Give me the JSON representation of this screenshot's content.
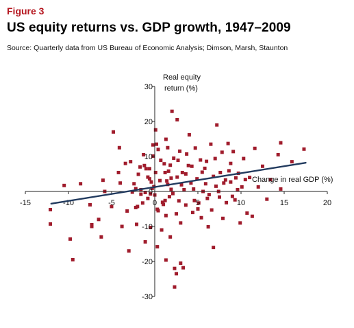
{
  "figure_label": "Figure 3",
  "title": "US equity returns vs. GDP growth, 1947–2009",
  "source": "Source: Quarterly data from US Bureau of Economic Analysis; Dimson, Marsh, Staunton",
  "colors": {
    "points": "#a01c2c",
    "trend": "#213a5e",
    "accent": "#b5161f"
  },
  "chart_data": {
    "type": "scatter",
    "title": "US equity returns vs. GDP growth, 1947–2009",
    "xlabel": "Change in real GDP (%)",
    "ylabel_line1": "Real equity",
    "ylabel_line2": "return (%)",
    "xlim": [
      -15,
      20
    ],
    "ylim": [
      -30,
      30
    ],
    "x_ticks": [
      -15,
      -10,
      -5,
      0,
      5,
      10,
      15,
      20
    ],
    "y_ticks": [
      -30,
      -20,
      -10,
      0,
      10,
      20,
      30
    ],
    "x_tick_labels": [
      "-15",
      "-10",
      "-5",
      "0",
      "5",
      "10",
      "15",
      "20"
    ],
    "y_tick_labels": [
      "-30",
      "-20",
      "-10",
      "0",
      "10",
      "20",
      "30"
    ],
    "trendline": {
      "x": [
        -12,
        17.5
      ],
      "y": [
        -3.5,
        8.2
      ]
    },
    "points": [
      [
        -12.1,
        -5.2
      ],
      [
        -12.1,
        -9.3
      ],
      [
        -10.5,
        1.7
      ],
      [
        -9.8,
        -13.6
      ],
      [
        -9.5,
        -19.5
      ],
      [
        -8.6,
        2.2
      ],
      [
        -7.5,
        -3.8
      ],
      [
        -7.3,
        -9.5
      ],
      [
        -7.3,
        -10.0
      ],
      [
        -6.5,
        -8.0
      ],
      [
        -6.2,
        -13.0
      ],
      [
        -6.0,
        3.2
      ],
      [
        -5.8,
        0.0
      ],
      [
        -5.0,
        -4.3
      ],
      [
        -4.8,
        17.0
      ],
      [
        -4.2,
        5.4
      ],
      [
        -4.0,
        2.4
      ],
      [
        -3.8,
        -10.0
      ],
      [
        -3.4,
        8.0
      ],
      [
        -3.0,
        -17.0
      ],
      [
        -2.8,
        8.5
      ],
      [
        -2.6,
        -0.2
      ],
      [
        -2.4,
        2.2
      ],
      [
        -2.2,
        0.8
      ],
      [
        -2.2,
        -4.6
      ],
      [
        -2.1,
        -9.4
      ],
      [
        -2.0,
        -4.3
      ],
      [
        -1.9,
        4.9
      ],
      [
        -1.7,
        7.0
      ],
      [
        -1.6,
        -0.8
      ],
      [
        -1.6,
        0.5
      ],
      [
        -1.4,
        -3.3
      ],
      [
        -1.2,
        7.4
      ],
      [
        -1.1,
        -0.3
      ],
      [
        -1.1,
        -14.4
      ],
      [
        -1.0,
        6.5
      ],
      [
        -0.8,
        4.1
      ],
      [
        -0.6,
        6.5
      ],
      [
        -0.6,
        3.6
      ],
      [
        -0.5,
        -0.7
      ],
      [
        -0.5,
        -10.3
      ],
      [
        -0.4,
        2.7
      ],
      [
        -0.3,
        0.9
      ],
      [
        -0.2,
        13.3
      ],
      [
        -0.2,
        10.1
      ],
      [
        -0.1,
        1.4
      ],
      [
        0.0,
        -1.0
      ],
      [
        0.1,
        17.6
      ],
      [
        0.1,
        5.4
      ],
      [
        0.2,
        13.5
      ],
      [
        0.3,
        -5.1
      ],
      [
        0.3,
        -15.8
      ],
      [
        0.4,
        -5.5
      ],
      [
        0.6,
        3.1
      ],
      [
        0.7,
        8.9
      ],
      [
        0.9,
        -3.1
      ],
      [
        1.0,
        -3.7
      ],
      [
        1.1,
        7.9
      ],
      [
        1.2,
        5.4
      ],
      [
        1.2,
        -2.6
      ],
      [
        1.3,
        14.9
      ],
      [
        1.3,
        -6.9
      ],
      [
        1.4,
        3.0
      ],
      [
        1.5,
        12.5
      ],
      [
        1.5,
        2.0
      ],
      [
        1.6,
        5.8
      ],
      [
        1.7,
        -1.5
      ],
      [
        1.8,
        -13.0
      ],
      [
        1.8,
        7.5
      ],
      [
        1.9,
        0.6
      ],
      [
        2.0,
        22.9
      ],
      [
        2.1,
        -0.6
      ],
      [
        2.3,
        -22.0
      ],
      [
        2.5,
        -6.4
      ],
      [
        2.5,
        -23.5
      ],
      [
        2.6,
        4.1
      ],
      [
        2.6,
        20.5
      ],
      [
        2.7,
        8.9
      ],
      [
        2.8,
        -2.7
      ],
      [
        2.9,
        11.5
      ],
      [
        3.0,
        -9.0
      ],
      [
        3.1,
        1.9
      ],
      [
        3.2,
        5.4
      ],
      [
        3.4,
        0.5
      ],
      [
        3.6,
        -3.9
      ],
      [
        3.7,
        10.7
      ],
      [
        3.9,
        7.4
      ],
      [
        4.0,
        16.2
      ],
      [
        4.2,
        2.4
      ],
      [
        4.3,
        7.2
      ],
      [
        4.5,
        0.7
      ],
      [
        4.6,
        -2.6
      ],
      [
        4.7,
        12.4
      ],
      [
        4.9,
        3.6
      ],
      [
        5.0,
        -5.0
      ],
      [
        5.1,
        -3.3
      ],
      [
        5.3,
        9.0
      ],
      [
        5.4,
        -7.5
      ],
      [
        5.6,
        0.0
      ],
      [
        5.8,
        6.6
      ],
      [
        5.9,
        2.2
      ],
      [
        6.0,
        8.6
      ],
      [
        6.2,
        -10.1
      ],
      [
        6.3,
        -0.9
      ],
      [
        6.5,
        13.5
      ],
      [
        6.6,
        -5.3
      ],
      [
        6.8,
        4.3
      ],
      [
        7.0,
        9.4
      ],
      [
        7.1,
        1.5
      ],
      [
        7.2,
        19.0
      ],
      [
        7.4,
        0.0
      ],
      [
        7.5,
        -1.6
      ],
      [
        7.6,
        5.4
      ],
      [
        7.8,
        11.2
      ],
      [
        7.9,
        -7.7
      ],
      [
        8.0,
        2.4
      ],
      [
        8.2,
        3.3
      ],
      [
        8.3,
        -3.2
      ],
      [
        8.5,
        13.7
      ],
      [
        8.6,
        5.9
      ],
      [
        8.8,
        2.7
      ],
      [
        9.0,
        -1.4
      ],
      [
        9.1,
        11.4
      ],
      [
        9.3,
        -2.4
      ],
      [
        9.4,
        3.9
      ],
      [
        9.6,
        0.5
      ],
      [
        9.7,
        5.2
      ],
      [
        9.9,
        -9.0
      ],
      [
        10.1,
        1.3
      ],
      [
        10.3,
        9.4
      ],
      [
        10.5,
        3.4
      ],
      [
        10.7,
        -6.2
      ],
      [
        11.0,
        4.0
      ],
      [
        11.3,
        -7.1
      ],
      [
        11.6,
        12.3
      ],
      [
        12.0,
        1.3
      ],
      [
        12.5,
        7.2
      ],
      [
        13.0,
        -2.2
      ],
      [
        13.4,
        3.4
      ],
      [
        14.3,
        10.5
      ],
      [
        14.6,
        0.7
      ],
      [
        14.6,
        13.9
      ],
      [
        15.9,
        8.5
      ],
      [
        17.3,
        12.1
      ],
      [
        0.8,
        -11.0
      ],
      [
        1.3,
        -19.6
      ],
      [
        2.3,
        -27.3
      ],
      [
        3.0,
        -20.5
      ],
      [
        3.3,
        -21.8
      ],
      [
        6.8,
        -16.0
      ],
      [
        -4.1,
        12.5
      ],
      [
        0.4,
        12.0
      ],
      [
        2.2,
        9.5
      ],
      [
        -1.3,
        10.5
      ],
      [
        3.6,
        5.0
      ],
      [
        5.5,
        5.5
      ],
      [
        -0.8,
        -2.0
      ],
      [
        4.4,
        -6.0
      ],
      [
        6.1,
        -2.0
      ],
      [
        8.8,
        8.0
      ],
      [
        -3.2,
        -5.6
      ],
      [
        1.9,
        3.8
      ]
    ]
  }
}
